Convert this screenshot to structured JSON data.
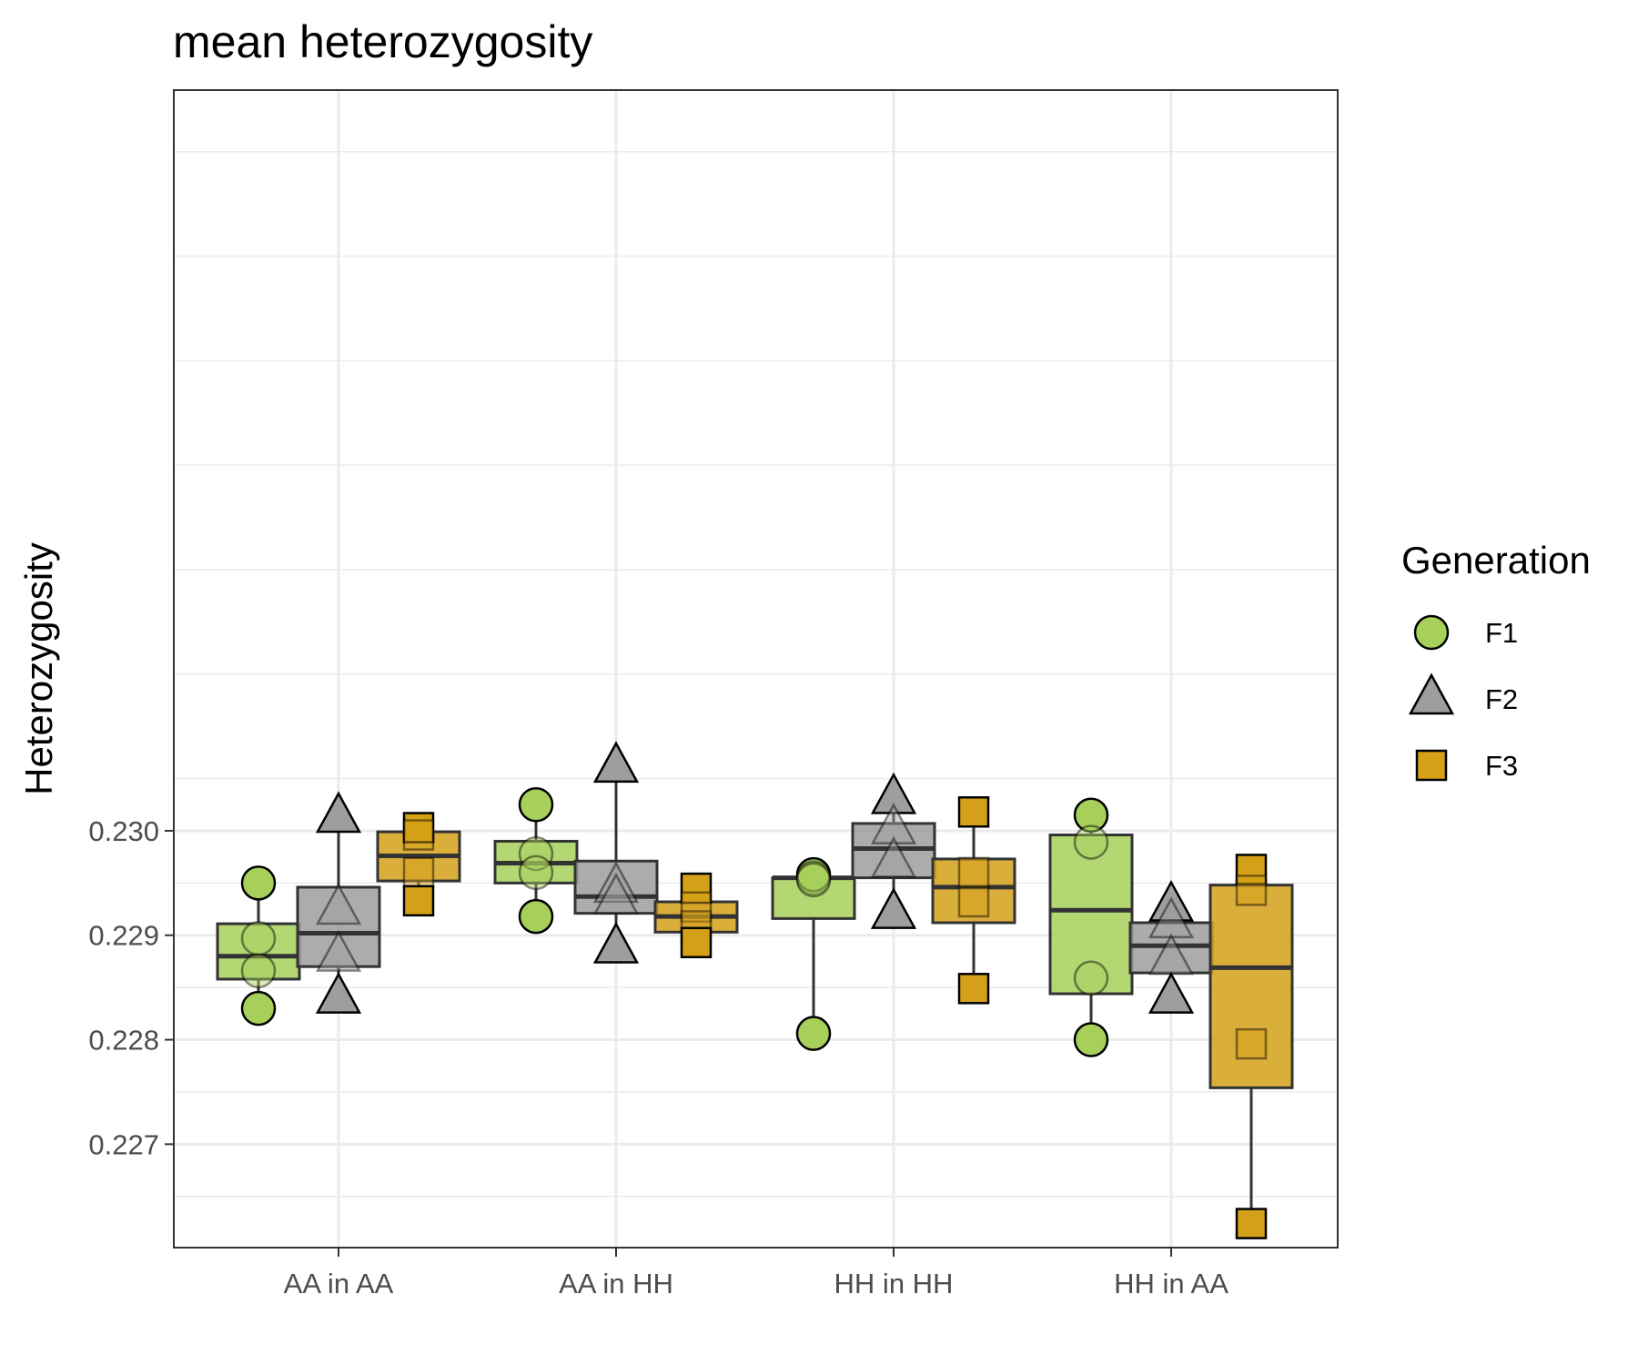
{
  "chart_data": {
    "type": "box",
    "title": "mean heterozygosity",
    "xlabel": "",
    "ylabel": "Heterozygosity",
    "categories": [
      "AA in AA",
      "AA in HH",
      "HH in HH",
      "HH in AA"
    ],
    "y_ticks": [
      0.227,
      0.228,
      0.229,
      0.23
    ],
    "y_tick_labels": [
      "0.227",
      "0.228",
      "0.229",
      "0.230"
    ],
    "ylim": [
      0.22601,
      0.23709
    ],
    "grid": true,
    "legend": {
      "title": "Generation",
      "position": "right"
    },
    "series": [
      {
        "name": "F1",
        "shape": "circle",
        "color": "#a6d05a",
        "boxes": [
          {
            "category": "AA in AA",
            "q1": 0.22858,
            "median": 0.2288,
            "q3": 0.22911,
            "whisker_low": 0.2283,
            "whisker_high": 0.2295,
            "points": [
              0.2295,
              0.22897,
              0.22866,
              0.2283
            ]
          },
          {
            "category": "AA in HH",
            "q1": 0.2295,
            "median": 0.22969,
            "q3": 0.2299,
            "whisker_low": 0.22918,
            "whisker_high": 0.23025,
            "points": [
              0.23025,
              0.22978,
              0.2296,
              0.22918
            ]
          },
          {
            "category": "HH in HH",
            "q1": 0.22916,
            "median": 0.22955,
            "q3": 0.22955,
            "whisker_low": 0.22806,
            "whisker_high": 0.22958,
            "points": [
              0.22958,
              0.22955,
              0.22953,
              0.22806
            ]
          },
          {
            "category": "HH in AA",
            "q1": 0.22844,
            "median": 0.22924,
            "q3": 0.22996,
            "whisker_low": 0.228,
            "whisker_high": 0.23015,
            "points": [
              0.23015,
              0.22989,
              0.22859,
              0.228
            ]
          }
        ]
      },
      {
        "name": "F2",
        "shape": "triangle",
        "color": "#9e9e9e",
        "boxes": [
          {
            "category": "AA in AA",
            "q1": 0.2287,
            "median": 0.22902,
            "q3": 0.22946,
            "whisker_low": 0.2284,
            "whisker_high": 0.23013,
            "points": [
              0.23013,
              0.22925,
              0.2288,
              0.2284
            ]
          },
          {
            "category": "AA in HH",
            "q1": 0.22921,
            "median": 0.22937,
            "q3": 0.22971,
            "whisker_low": 0.22888,
            "whisker_high": 0.23061,
            "points": [
              0.23061,
              0.22946,
              0.22935,
              0.22888
            ]
          },
          {
            "category": "HH in HH",
            "q1": 0.22955,
            "median": 0.22983,
            "q3": 0.23007,
            "whisker_low": 0.22921,
            "whisker_high": 0.23031,
            "points": [
              0.23031,
              0.23002,
              0.2297,
              0.22921
            ]
          },
          {
            "category": "HH in AA",
            "q1": 0.22864,
            "median": 0.2289,
            "q3": 0.22912,
            "whisker_low": 0.2284,
            "whisker_high": 0.22928,
            "points": [
              0.22928,
              0.22912,
              0.22877,
              0.2284
            ]
          }
        ]
      },
      {
        "name": "F3",
        "shape": "square",
        "color": "#d4a017",
        "boxes": [
          {
            "category": "AA in AA",
            "q1": 0.22952,
            "median": 0.22976,
            "q3": 0.22999,
            "whisker_low": 0.22933,
            "whisker_high": 0.23003,
            "points": [
              0.23003,
              0.22996,
              0.2296,
              0.22933
            ]
          },
          {
            "category": "AA in HH",
            "q1": 0.22903,
            "median": 0.22918,
            "q3": 0.22932,
            "whisker_low": 0.22893,
            "whisker_high": 0.22945,
            "points": [
              0.22945,
              0.22927,
              0.22909,
              0.22893
            ]
          },
          {
            "category": "HH in HH",
            "q1": 0.22912,
            "median": 0.22946,
            "q3": 0.22973,
            "whisker_low": 0.22849,
            "whisker_high": 0.23018,
            "points": [
              0.23018,
              0.2296,
              0.22932,
              0.22849
            ]
          },
          {
            "category": "HH in AA",
            "q1": 0.22754,
            "median": 0.22869,
            "q3": 0.22948,
            "whisker_low": 0.22624,
            "whisker_high": 0.22963,
            "points": [
              0.22963,
              0.22943,
              0.22796,
              0.22624
            ]
          }
        ]
      }
    ]
  }
}
